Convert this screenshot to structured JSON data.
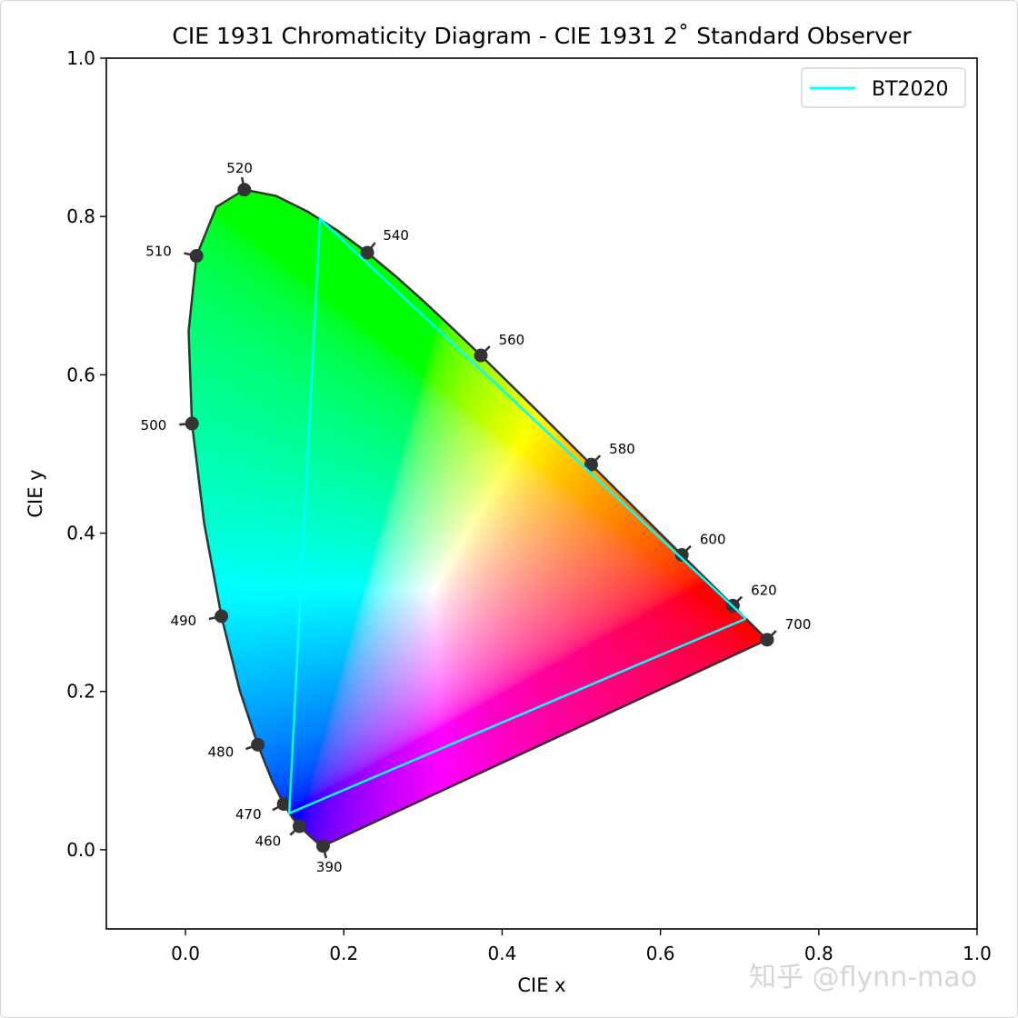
{
  "chart_data": {
    "type": "line",
    "title": "CIE 1931 Chromaticity Diagram - CIE 1931 2˚ Standard Observer",
    "xlabel": "CIE x",
    "ylabel": "CIE y",
    "xlim": [
      -0.1,
      1.0
    ],
    "ylim": [
      -0.1,
      1.0
    ],
    "xticks": [
      "0.0",
      "0.2",
      "0.4",
      "0.6",
      "0.8",
      "1.0"
    ],
    "yticks": [
      "0.0",
      "0.2",
      "0.4",
      "0.6",
      "0.8",
      "1.0"
    ],
    "grid": false,
    "legend_position": "top-right",
    "spectral_locus": [
      [
        380,
        0.1741,
        0.005
      ],
      [
        390,
        0.1738,
        0.0049
      ],
      [
        400,
        0.1733,
        0.0048
      ],
      [
        410,
        0.1726,
        0.0048
      ],
      [
        420,
        0.1714,
        0.0051
      ],
      [
        430,
        0.1689,
        0.0069
      ],
      [
        440,
        0.1644,
        0.0109
      ],
      [
        450,
        0.1566,
        0.0177
      ],
      [
        460,
        0.144,
        0.0297
      ],
      [
        465,
        0.1355,
        0.0399
      ],
      [
        470,
        0.1241,
        0.0578
      ],
      [
        475,
        0.1096,
        0.0868
      ],
      [
        480,
        0.0913,
        0.1327
      ],
      [
        485,
        0.0687,
        0.2007
      ],
      [
        490,
        0.0454,
        0.295
      ],
      [
        495,
        0.0235,
        0.4127
      ],
      [
        500,
        0.0082,
        0.5384
      ],
      [
        505,
        0.0039,
        0.6548
      ],
      [
        510,
        0.0139,
        0.7502
      ],
      [
        515,
        0.0389,
        0.812
      ],
      [
        520,
        0.0743,
        0.8338
      ],
      [
        525,
        0.1142,
        0.8262
      ],
      [
        530,
        0.1547,
        0.8059
      ],
      [
        535,
        0.1929,
        0.7816
      ],
      [
        540,
        0.2296,
        0.7543
      ],
      [
        545,
        0.2658,
        0.7243
      ],
      [
        550,
        0.3016,
        0.6923
      ],
      [
        555,
        0.3373,
        0.6589
      ],
      [
        560,
        0.3731,
        0.6245
      ],
      [
        570,
        0.4441,
        0.5547
      ],
      [
        580,
        0.5125,
        0.4866
      ],
      [
        590,
        0.5752,
        0.4242
      ],
      [
        600,
        0.627,
        0.3725
      ],
      [
        610,
        0.6658,
        0.334
      ],
      [
        620,
        0.6915,
        0.3083
      ],
      [
        630,
        0.7079,
        0.292
      ],
      [
        640,
        0.719,
        0.2809
      ],
      [
        650,
        0.726,
        0.274
      ],
      [
        700,
        0.7347,
        0.2653
      ]
    ],
    "wavelength_labels": [
      390,
      460,
      470,
      480,
      490,
      500,
      510,
      520,
      540,
      560,
      580,
      600,
      620,
      700
    ],
    "series": [
      {
        "name": "BT2020",
        "color": "#00ffff",
        "points": [
          [
            0.708,
            0.292
          ],
          [
            0.17,
            0.797
          ],
          [
            0.131,
            0.046
          ],
          [
            0.708,
            0.292
          ]
        ]
      }
    ],
    "locus_color": "#333333"
  },
  "watermark": "知乎 @flynn-mao"
}
